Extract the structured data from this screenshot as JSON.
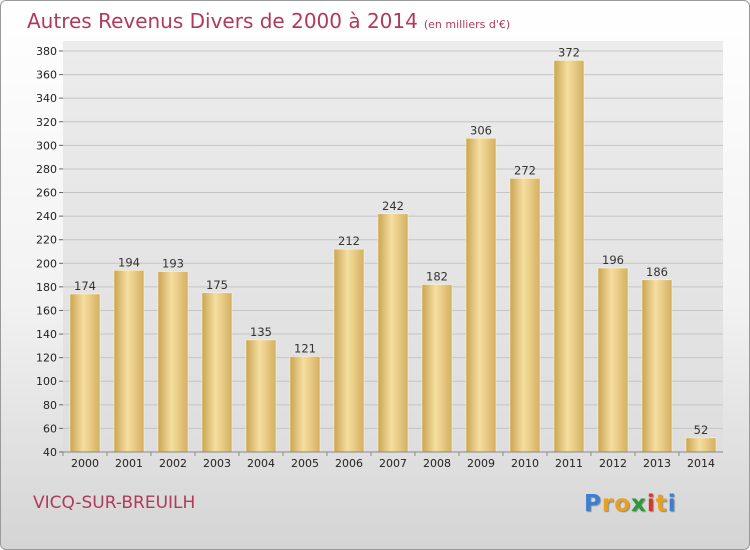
{
  "header": {
    "title": "Autres Revenus Divers de 2000 à 2014",
    "unit": "(en milliers d'€)"
  },
  "footer": {
    "commune": "VICQ-SUR-BREUILH",
    "logo": [
      "P",
      "r",
      "o",
      "x",
      "i",
      "t",
      "i"
    ],
    "logo_colors": [
      "#3a7fd0",
      "#e8a020",
      "#e8a020",
      "#2a9a3a",
      "#d03a2a",
      "#e8a020",
      "#3a7fd0"
    ]
  },
  "chart_data": {
    "type": "bar",
    "categories": [
      "2000",
      "2001",
      "2002",
      "2003",
      "2004",
      "2005",
      "2006",
      "2007",
      "2008",
      "2009",
      "2010",
      "2011",
      "2012",
      "2013",
      "2014"
    ],
    "values": [
      174,
      194,
      193,
      175,
      135,
      121,
      212,
      242,
      182,
      306,
      272,
      372,
      196,
      186,
      52
    ],
    "title": "Autres Revenus Divers de 2000 à 2014",
    "xlabel": "",
    "ylabel": "",
    "ylim": [
      40,
      380
    ],
    "yticks": [
      40,
      60,
      80,
      100,
      120,
      140,
      160,
      180,
      200,
      220,
      240,
      260,
      280,
      300,
      320,
      340,
      360,
      380
    ],
    "grid": true,
    "bar_color": "#e8cc7e"
  }
}
